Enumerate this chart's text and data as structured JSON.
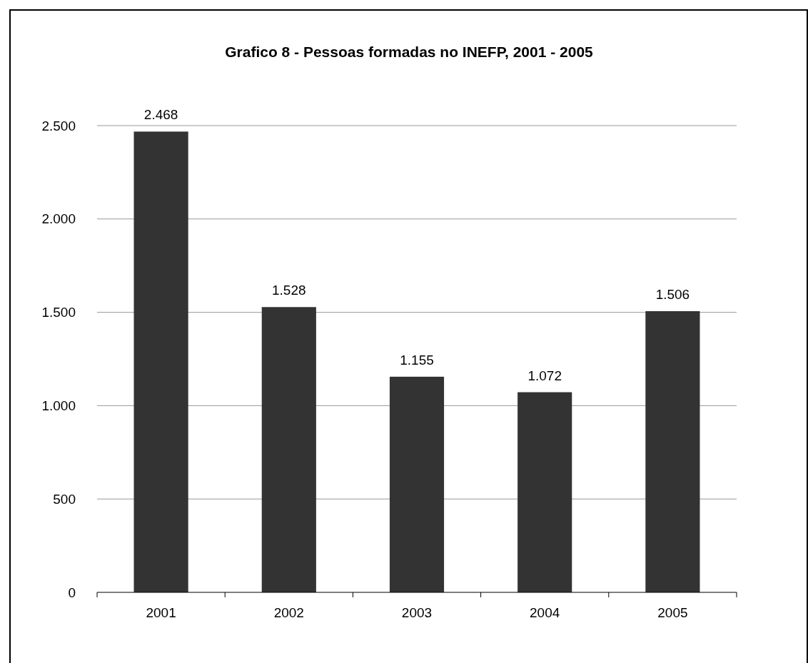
{
  "chart_data": {
    "type": "bar",
    "title": "Grafico 8 - Pessoas formadas no INEFP, 2001 - 2005",
    "categories": [
      "2001",
      "2002",
      "2003",
      "2004",
      "2005"
    ],
    "values": [
      2468,
      1528,
      1155,
      1072,
      1506
    ],
    "value_labels": [
      "2.468",
      "1.528",
      "1.155",
      "1.072",
      "1.506"
    ],
    "color": "#333333",
    "ylim": [
      0,
      2500
    ],
    "yticks": [
      {
        "value": 0,
        "label": "0"
      },
      {
        "value": 500,
        "label": "500"
      },
      {
        "value": 1000,
        "label": "1.000"
      },
      {
        "value": 1500,
        "label": "1.500"
      },
      {
        "value": 2000,
        "label": "2.000"
      },
      {
        "value": 2500,
        "label": "2.500"
      }
    ],
    "grid": "y"
  }
}
